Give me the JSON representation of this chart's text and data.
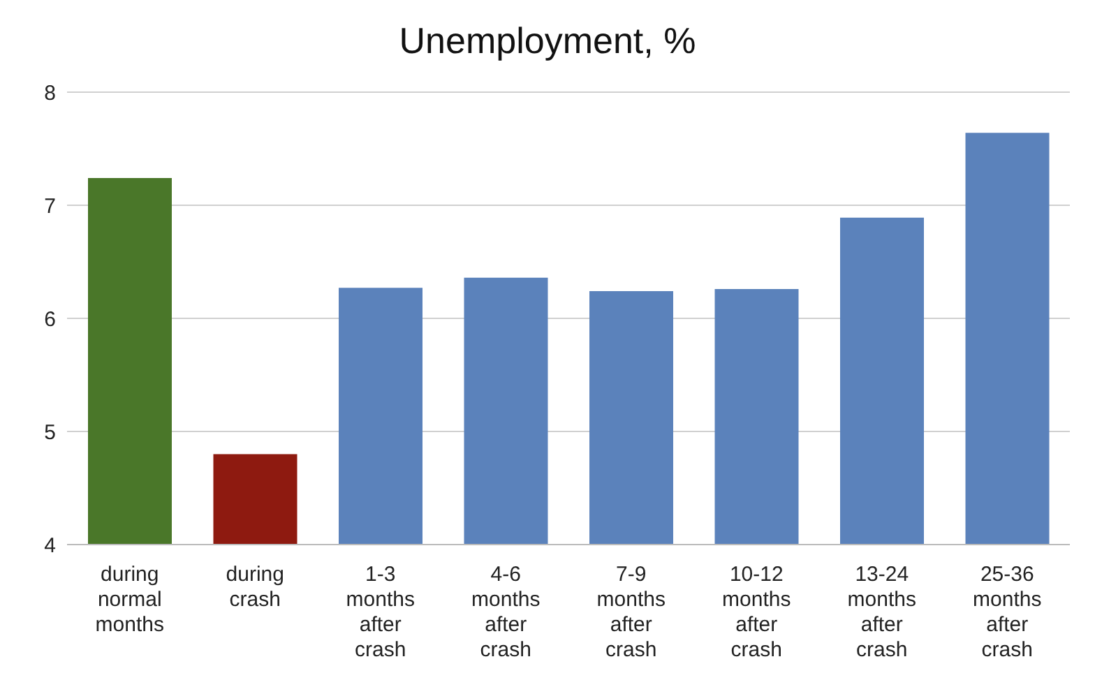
{
  "chart_data": {
    "type": "bar",
    "title": "Unemployment, %",
    "categories": [
      "during normal months",
      "during crash",
      "1-3 months after crash",
      "4-6 months after crash",
      "7-9 months after crash",
      "10-12 months after crash",
      "13-24 months after crash",
      "25-36 months after crash"
    ],
    "values": [
      7.24,
      4.8,
      6.27,
      6.36,
      6.24,
      6.26,
      6.89,
      7.64
    ],
    "colors": [
      "#4a7729",
      "#8e1a10",
      "#5b82bb",
      "#5b82bb",
      "#5b82bb",
      "#5b82bb",
      "#5b82bb",
      "#5b82bb"
    ],
    "ylim": [
      4,
      8
    ],
    "yticks": [
      4,
      5,
      6,
      7,
      8
    ],
    "grid": "y"
  }
}
